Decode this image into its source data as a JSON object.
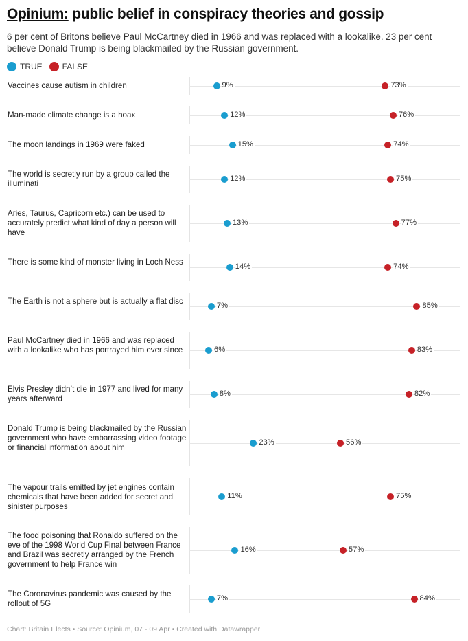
{
  "header": {
    "title_source": "Opinium:",
    "title_rest": " public belief in conspiracy theories and gossip",
    "subtitle": "6 per cent of Britons believe Paul McCartney died in 1966 and was replaced with a lookalike. 23 per cent believe Donald Trump is being blackmailed by the Russian government."
  },
  "legend": [
    {
      "label": "TRUE",
      "color": "#1a9dcf"
    },
    {
      "label": "FALSE",
      "color": "#c62127"
    }
  ],
  "footer": "Chart: Britain Elects • Source: Opinium, 07 - 09 Apr • Created with Datawrapper",
  "chart_data": {
    "type": "dot-range",
    "title": "Opinium: public belief in conspiracy theories and gossip",
    "subtitle": "6 per cent of Britons believe Paul McCartney died in 1966 and was replaced with a lookalike. 23 per cent believe Donald Trump is being blackmailed by the Russian government.",
    "xlim": [
      0,
      100
    ],
    "unit": "%",
    "legend_position": "top-left",
    "series": [
      {
        "name": "TRUE",
        "color": "#1a9dcf"
      },
      {
        "name": "FALSE",
        "color": "#c62127"
      }
    ],
    "rows": [
      {
        "label": "Vaccines cause autism in children",
        "true": 9,
        "false": 73
      },
      {
        "label": "Man-made climate change is a hoax",
        "true": 12,
        "false": 76
      },
      {
        "label": "The moon landings in 1969 were faked",
        "true": 15,
        "false": 74
      },
      {
        "label": "The world is secretly run by a group called the illuminati",
        "true": 12,
        "false": 75
      },
      {
        "label": "Aries, Taurus, Capricorn etc.) can be used to accurately predict what kind of day a person will have",
        "true": 13,
        "false": 77
      },
      {
        "label": "There is some kind of monster living in Loch Ness",
        "true": 14,
        "false": 74
      },
      {
        "label": "The Earth is not a sphere but is actually a flat disc",
        "true": 7,
        "false": 85
      },
      {
        "label": "Paul McCartney died in 1966 and was replaced with a lookalike who has portrayed him ever since",
        "true": 6,
        "false": 83
      },
      {
        "label": "Elvis Presley didn’t die in 1977 and lived for many years afterward",
        "true": 8,
        "false": 82
      },
      {
        "label": "Donald Trump is being blackmailed by the Russian government who have embarrassing video footage or financial information about him",
        "true": 23,
        "false": 56
      },
      {
        "label": "The vapour trails emitted by jet engines contain chemicals that have been added for secret and sinister purposes",
        "true": 11,
        "false": 75
      },
      {
        "label": "The food poisoning that Ronaldo suffered on the eve of the 1998 World Cup Final between France and Brazil was secretly arranged by the French government to help France win",
        "true": 16,
        "false": 57
      },
      {
        "label": "The Coronavirus pandemic was caused by the rollout of 5G",
        "true": 7,
        "false": 84
      }
    ]
  }
}
